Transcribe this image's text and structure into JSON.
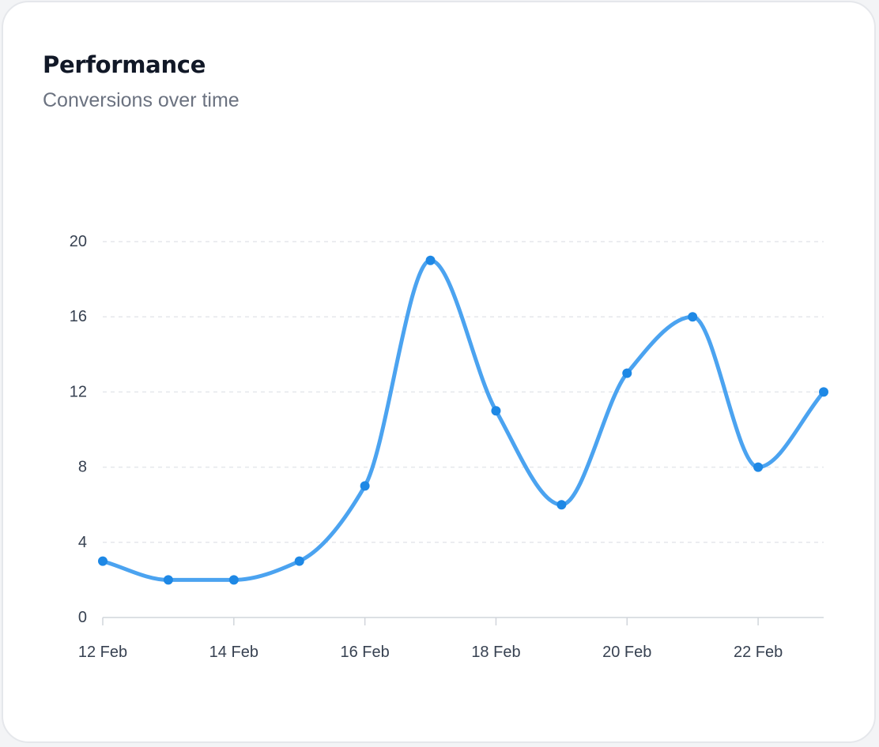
{
  "card": {
    "title": "Performance",
    "subtitle": "Conversions over time"
  },
  "colors": {
    "line": "#4ba3f0",
    "point": "#1e88e5",
    "grid": "#e5e7eb",
    "axis": "#d1d5db",
    "title": "#111827",
    "subtitle": "#6b7280"
  },
  "chart_data": {
    "type": "line",
    "title": "Performance",
    "subtitle": "Conversions over time",
    "xlabel": "",
    "ylabel": "",
    "x": [
      "12 Feb",
      "13 Feb",
      "14 Feb",
      "15 Feb",
      "16 Feb",
      "17 Feb",
      "18 Feb",
      "19 Feb",
      "20 Feb",
      "21 Feb",
      "22 Feb",
      "23 Feb"
    ],
    "x_tick_labels": [
      "12 Feb",
      "14 Feb",
      "16 Feb",
      "18 Feb",
      "20 Feb",
      "22 Feb"
    ],
    "series": [
      {
        "name": "Conversions",
        "values": [
          3,
          2,
          2,
          3,
          7,
          19,
          11,
          6,
          13,
          16,
          8,
          12
        ]
      }
    ],
    "ylim": [
      0,
      20
    ],
    "y_ticks": [
      0,
      4,
      8,
      12,
      16,
      20
    ],
    "grid": true,
    "curve": "smooth"
  }
}
